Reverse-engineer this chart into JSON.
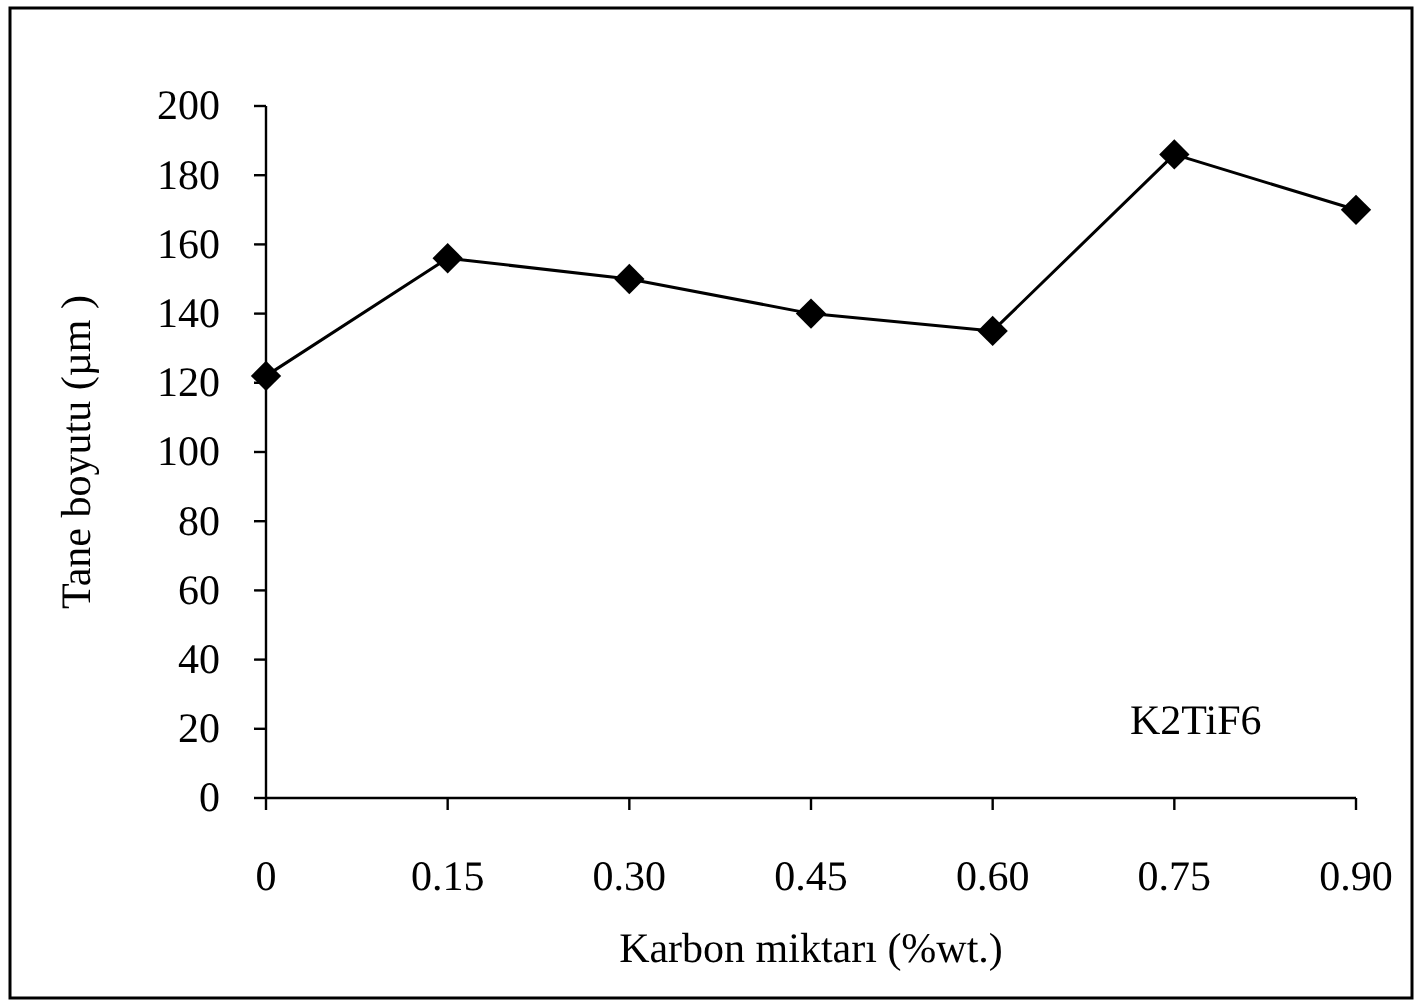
{
  "chart_data": {
    "type": "line",
    "xlabel": "Karbon miktarı (%wt.)",
    "ylabel": "Tane boyutu (µm )",
    "categories": [
      "0",
      "0.15",
      "0.30",
      "0.45",
      "0.60",
      "0.75",
      "0.90"
    ],
    "values": [
      122,
      156,
      150,
      140,
      135,
      186,
      170
    ],
    "color": "#000000",
    "ylim": [
      0,
      200
    ],
    "yticks": [
      0,
      20,
      40,
      60,
      80,
      100,
      120,
      140,
      160,
      180,
      200
    ],
    "marker": "diamond",
    "line_style": "solid",
    "annotations": [
      "K2TiF6"
    ]
  }
}
